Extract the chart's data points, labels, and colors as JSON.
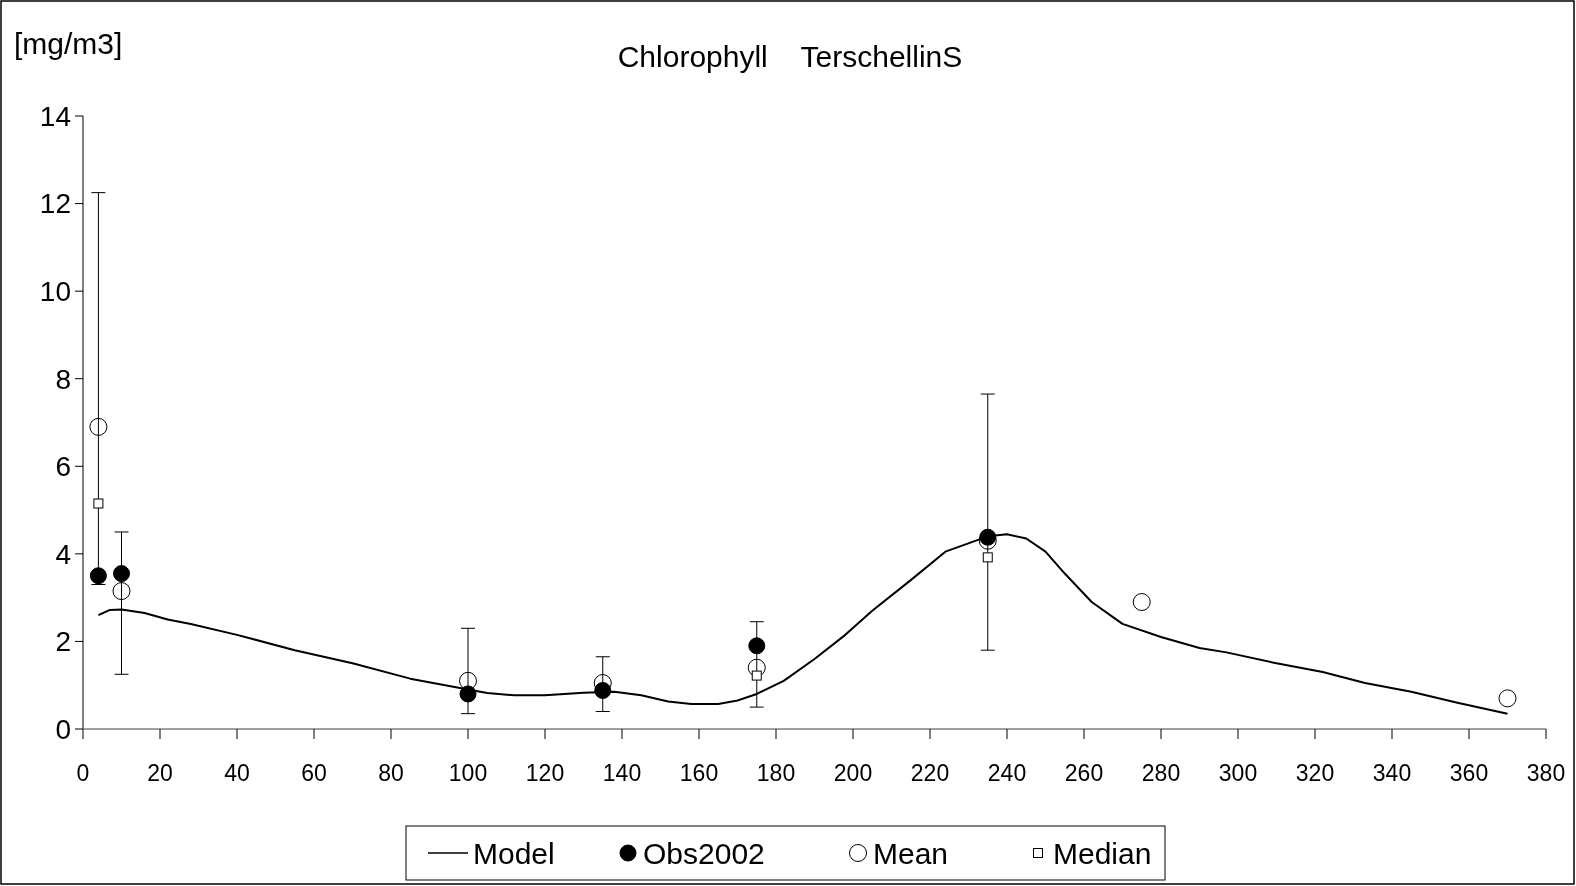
{
  "chart_data": {
    "type": "line",
    "title": "Chlorophyll    TerschellinS",
    "ylabel": "[mg/m3]",
    "xlim": [
      0,
      380
    ],
    "ylim": [
      0,
      14
    ],
    "xticks": [
      0,
      20,
      40,
      60,
      80,
      100,
      120,
      140,
      160,
      180,
      200,
      220,
      240,
      260,
      280,
      300,
      320,
      340,
      360,
      380
    ],
    "yticks": [
      0,
      2,
      4,
      6,
      8,
      10,
      12,
      14
    ],
    "grid": false,
    "legend": "bottom",
    "series": [
      {
        "name": "Model",
        "color": "#000000",
        "marker": "none",
        "line_style": "solid",
        "x": [
          4,
          7,
          10,
          16,
          22,
          28,
          40,
          55,
          70,
          85,
          100,
          105,
          112,
          120,
          130,
          138,
          145,
          152,
          158,
          165,
          170,
          175,
          182,
          190,
          198,
          205,
          215,
          224,
          235,
          240,
          245,
          250,
          255,
          262,
          270,
          280,
          290,
          297,
          310,
          322,
          333,
          345,
          357,
          370
        ],
        "values": [
          2.6,
          2.72,
          2.73,
          2.65,
          2.5,
          2.4,
          2.15,
          1.8,
          1.5,
          1.15,
          0.9,
          0.82,
          0.77,
          0.77,
          0.83,
          0.85,
          0.77,
          0.63,
          0.57,
          0.57,
          0.65,
          0.8,
          1.1,
          1.6,
          2.15,
          2.7,
          3.4,
          4.05,
          4.4,
          4.45,
          4.35,
          4.05,
          3.55,
          2.9,
          2.4,
          2.1,
          1.85,
          1.75,
          1.5,
          1.3,
          1.05,
          0.85,
          0.6,
          0.35
        ]
      },
      {
        "name": "Obs2002",
        "type": "scatter",
        "color": "#000000",
        "marker": "circle",
        "x": [
          4,
          10,
          100,
          135,
          175,
          235
        ],
        "values": [
          3.5,
          3.55,
          0.8,
          0.88,
          1.9,
          4.38
        ]
      },
      {
        "name": "Mean",
        "type": "scatter",
        "color": "#000000",
        "marker": "circle",
        "x": [
          4,
          10,
          100,
          135,
          175,
          235,
          275,
          370
        ],
        "values": [
          6.9,
          3.15,
          1.1,
          1.05,
          1.4,
          4.3,
          2.9,
          0.7
        ],
        "errors": [
          [
            3.3,
            12.25
          ],
          [
            1.25,
            4.5
          ],
          [
            0.35,
            2.3
          ],
          [
            0.4,
            1.65
          ],
          [
            0.5,
            2.45
          ],
          [
            1.8,
            7.65
          ],
          null,
          null
        ]
      },
      {
        "name": "Median",
        "type": "scatter",
        "color": "#000000",
        "marker": "square",
        "x": [
          4,
          175,
          235
        ],
        "values": [
          5.15,
          1.22,
          3.92
        ]
      }
    ]
  }
}
